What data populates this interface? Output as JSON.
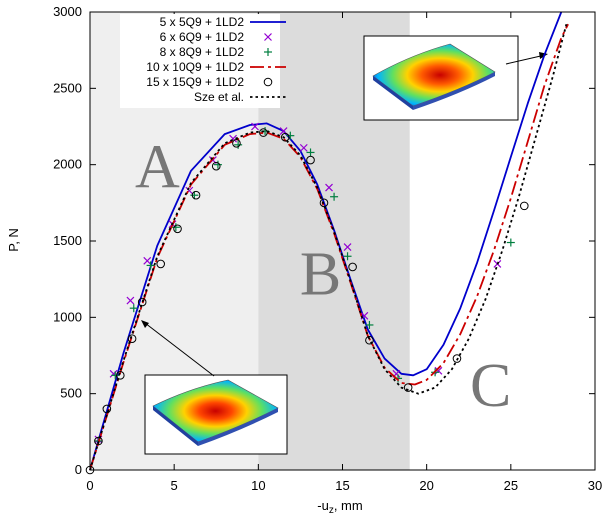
{
  "chart_data": {
    "type": "line",
    "xlabel": "-u",
    "xlabel_sub": "z",
    "xlabel_unit": ", mm",
    "ylabel": "P, N",
    "xlim": [
      0,
      30
    ],
    "ylim": [
      0,
      3000
    ],
    "xticks": [
      0,
      5,
      10,
      15,
      20,
      25,
      30
    ],
    "yticks": [
      0,
      500,
      1000,
      1500,
      2000,
      2500,
      3000
    ],
    "grid": false,
    "legend_position": "top-left",
    "regions": [
      {
        "label": "A",
        "x0": 0,
        "x1": 10,
        "color": "#efefef",
        "label_x": 4,
        "label_y": 1850
      },
      {
        "label": "B",
        "x0": 10,
        "x1": 19,
        "color": "#dcdcdc",
        "label_x": 13.7,
        "label_y": 1150
      },
      {
        "label": "C",
        "x0": 19,
        "x1": 30,
        "color": "#ffffff",
        "label_x": 23.8,
        "label_y": 420
      }
    ],
    "series": [
      {
        "name": "5 x 5Q9 + 1LD2",
        "style": "line",
        "color": "#0000cc",
        "x": [
          0,
          2,
          4,
          6,
          8,
          9.5,
          10.5,
          11.5,
          12.5,
          13.5,
          14.5,
          15.5,
          16.5,
          17.5,
          18.5,
          19.2,
          20,
          21,
          22,
          23,
          24,
          25,
          26,
          27,
          28
        ],
        "y": [
          0,
          770,
          1470,
          1960,
          2200,
          2260,
          2270,
          2220,
          2090,
          1870,
          1570,
          1240,
          920,
          730,
          630,
          620,
          660,
          820,
          1060,
          1360,
          1700,
          2050,
          2400,
          2720,
          3000
        ]
      },
      {
        "name": "6 x 6Q9 + 1LD2",
        "style": "marker",
        "marker": "x",
        "color": "#9400d3",
        "x": [
          0.5,
          1.4,
          2.4,
          3.4,
          4.9,
          5.9,
          7.3,
          8.5,
          9.8,
          11.5,
          12.7,
          14.2,
          15.3,
          16.3,
          18.2,
          20.7,
          24.2
        ],
        "y": [
          200,
          630,
          1110,
          1370,
          1610,
          1830,
          2030,
          2170,
          2250,
          2220,
          2110,
          1850,
          1460,
          1010,
          630,
          650,
          1350
        ]
      },
      {
        "name": "8 x 8Q9 + 1LD2",
        "style": "marker",
        "marker": "+",
        "color": "#007f3f",
        "x": [
          0.5,
          1.5,
          2.6,
          3.6,
          5.1,
          6.2,
          7.6,
          8.8,
          10.4,
          11.9,
          13.1,
          14.5,
          15.3,
          16.6,
          18.3,
          20.5,
          25
        ],
        "y": [
          190,
          620,
          1060,
          1340,
          1590,
          1800,
          2000,
          2130,
          2220,
          2190,
          2080,
          1790,
          1400,
          950,
          600,
          640,
          1490
        ]
      },
      {
        "name": "10 x 10Q9 + 1LD2",
        "style": "dash",
        "color": "#cc0000",
        "x": [
          0,
          2,
          4,
          6,
          8,
          9.5,
          10.5,
          11.5,
          12.5,
          13.5,
          14.5,
          15.5,
          16.5,
          17.5,
          18.5,
          19.3,
          20,
          21,
          22,
          23,
          24,
          25,
          26,
          27,
          28,
          28.4
        ],
        "y": [
          0,
          710,
          1390,
          1870,
          2130,
          2200,
          2210,
          2170,
          2050,
          1840,
          1550,
          1220,
          880,
          670,
          570,
          560,
          590,
          700,
          890,
          1140,
          1440,
          1780,
          2150,
          2520,
          2830,
          2920
        ]
      },
      {
        "name": "15 x 15Q9 + 1LD2",
        "style": "marker",
        "marker": "o",
        "color": "#000000",
        "x": [
          0,
          0.5,
          1,
          1.8,
          2.5,
          3.1,
          4.2,
          5.2,
          6.3,
          7.5,
          8.7,
          10.3,
          11.6,
          13.1,
          13.9,
          15.6,
          16.6,
          18.9,
          21.8,
          25.8
        ],
        "y": [
          0,
          190,
          400,
          620,
          860,
          1100,
          1350,
          1580,
          1800,
          1990,
          2140,
          2210,
          2180,
          2030,
          1750,
          1330,
          850,
          540,
          730,
          1730
        ]
      },
      {
        "name": "Sze et al.",
        "style": "dot",
        "color": "#000000",
        "x": [
          0,
          2,
          4,
          6,
          8,
          9.5,
          10.5,
          11.5,
          12.5,
          13.5,
          14.5,
          15.5,
          16.5,
          17.5,
          18.5,
          19.5,
          20.5,
          21.5,
          22.5,
          23.5,
          24.5,
          25.5,
          26.5,
          27.5,
          28.3
        ],
        "y": [
          0,
          720,
          1400,
          1880,
          2140,
          2210,
          2220,
          2180,
          2060,
          1850,
          1560,
          1230,
          880,
          660,
          540,
          500,
          540,
          660,
          860,
          1120,
          1440,
          1800,
          2190,
          2580,
          2920
        ]
      }
    ]
  }
}
